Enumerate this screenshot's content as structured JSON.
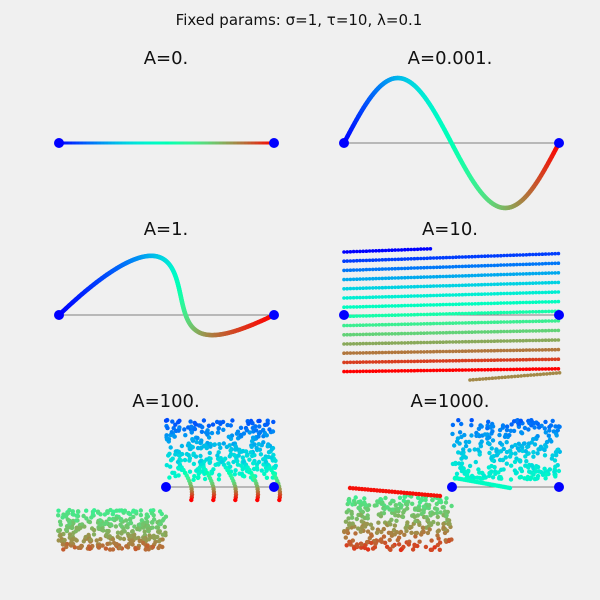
{
  "suptitle": "Fixed params: σ=1, τ=10, λ=0.1",
  "chart_data": [
    {
      "type": "line",
      "title": "A=0.",
      "pattern": "flat",
      "colormap": "rainbow",
      "endpoints": [
        {
          "x": 0,
          "y": 0
        },
        {
          "x": 1,
          "y": 0
        }
      ],
      "endpoint_color": "#0000ff",
      "baseline_color": "#808080"
    },
    {
      "type": "line",
      "title": "A=0.001.",
      "pattern": "sine",
      "colormap": "rainbow",
      "endpoints": [
        {
          "x": 0,
          "y": 0
        },
        {
          "x": 1,
          "y": 0
        }
      ],
      "endpoint_color": "#0000ff",
      "baseline_color": "#808080"
    },
    {
      "type": "line",
      "title": "A=1.",
      "pattern": "s-curve",
      "colormap": "rainbow",
      "endpoints": [
        {
          "x": 0,
          "y": 0
        },
        {
          "x": 1,
          "y": 0
        }
      ],
      "endpoint_color": "#0000ff",
      "baseline_color": "#808080"
    },
    {
      "type": "scatter",
      "title": "A=10.",
      "pattern": "stripes",
      "colormap": "rainbow",
      "endpoints": [
        {
          "x": 0,
          "y": 0
        },
        {
          "x": 1,
          "y": 0
        }
      ],
      "endpoint_color": "#0000ff",
      "baseline_color": "#808080"
    },
    {
      "type": "scatter",
      "title": "A=100.",
      "pattern": "blocks-arcs",
      "colormap": "rainbow",
      "endpoints": [
        {
          "x": 0,
          "y": 0
        },
        {
          "x": 1,
          "y": 0
        }
      ],
      "endpoint_color": "#0000ff",
      "baseline_color": "#808080"
    },
    {
      "type": "scatter",
      "title": "A=1000.",
      "pattern": "blocks-bands",
      "colormap": "rainbow",
      "endpoints": [
        {
          "x": 0,
          "y": 0
        },
        {
          "x": 1,
          "y": 0
        }
      ],
      "endpoint_color": "#0000ff",
      "baseline_color": "#808080"
    }
  ]
}
